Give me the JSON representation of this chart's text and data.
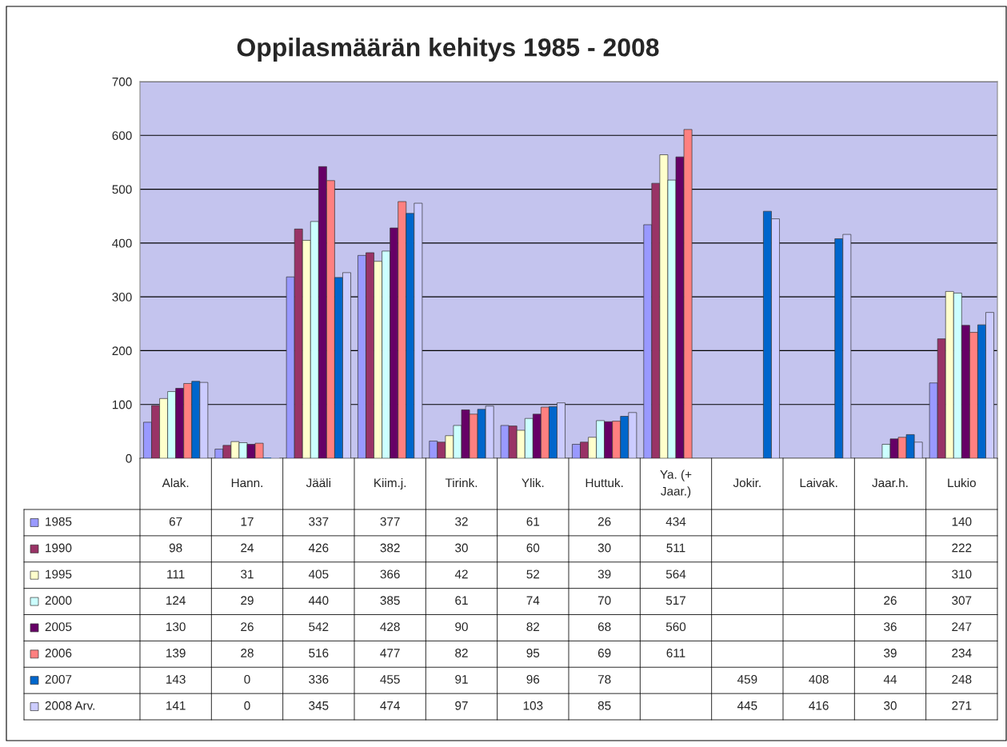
{
  "chart_data": {
    "type": "bar",
    "title": "Oppilasmäärän kehitys 1985 - 2008",
    "categories": [
      "Alak.",
      "Hann.",
      "Jääli",
      "Kiim.j.",
      "Tirink.",
      "Ylik.",
      "Huttuk.",
      "Ya. (+\nJaar.)",
      "Jokir.",
      "Laivak.",
      "Jaar.h.",
      "Lukio"
    ],
    "series": [
      {
        "name": "1985",
        "color": "#9999ff",
        "values": [
          67,
          17,
          337,
          377,
          32,
          61,
          26,
          434,
          null,
          null,
          null,
          140
        ]
      },
      {
        "name": "1990",
        "color": "#993366",
        "values": [
          98,
          24,
          426,
          382,
          30,
          60,
          30,
          511,
          null,
          null,
          null,
          222
        ]
      },
      {
        "name": "1995",
        "color": "#ffffcc",
        "values": [
          111,
          31,
          405,
          366,
          42,
          52,
          39,
          564,
          null,
          null,
          null,
          310
        ]
      },
      {
        "name": "2000",
        "color": "#ccffff",
        "values": [
          124,
          29,
          440,
          385,
          61,
          74,
          70,
          517,
          null,
          null,
          26,
          307
        ]
      },
      {
        "name": "2005",
        "color": "#660066",
        "values": [
          130,
          26,
          542,
          428,
          90,
          82,
          68,
          560,
          null,
          null,
          36,
          247
        ]
      },
      {
        "name": "2006",
        "color": "#ff8080",
        "values": [
          139,
          28,
          516,
          477,
          82,
          95,
          69,
          611,
          null,
          null,
          39,
          234
        ]
      },
      {
        "name": "2007",
        "color": "#0066cc",
        "values": [
          143,
          0,
          336,
          455,
          91,
          96,
          78,
          null,
          459,
          408,
          44,
          248
        ]
      },
      {
        "name": "2008 Arv.",
        "color": "#ccccff",
        "values": [
          141,
          0,
          345,
          474,
          97,
          103,
          85,
          null,
          445,
          416,
          30,
          271
        ]
      }
    ],
    "ylim": [
      0,
      700
    ],
    "yticks": [
      0,
      100,
      200,
      300,
      400,
      500,
      600,
      700
    ],
    "grid": "y",
    "data_labels": true,
    "legend": "bottom"
  }
}
